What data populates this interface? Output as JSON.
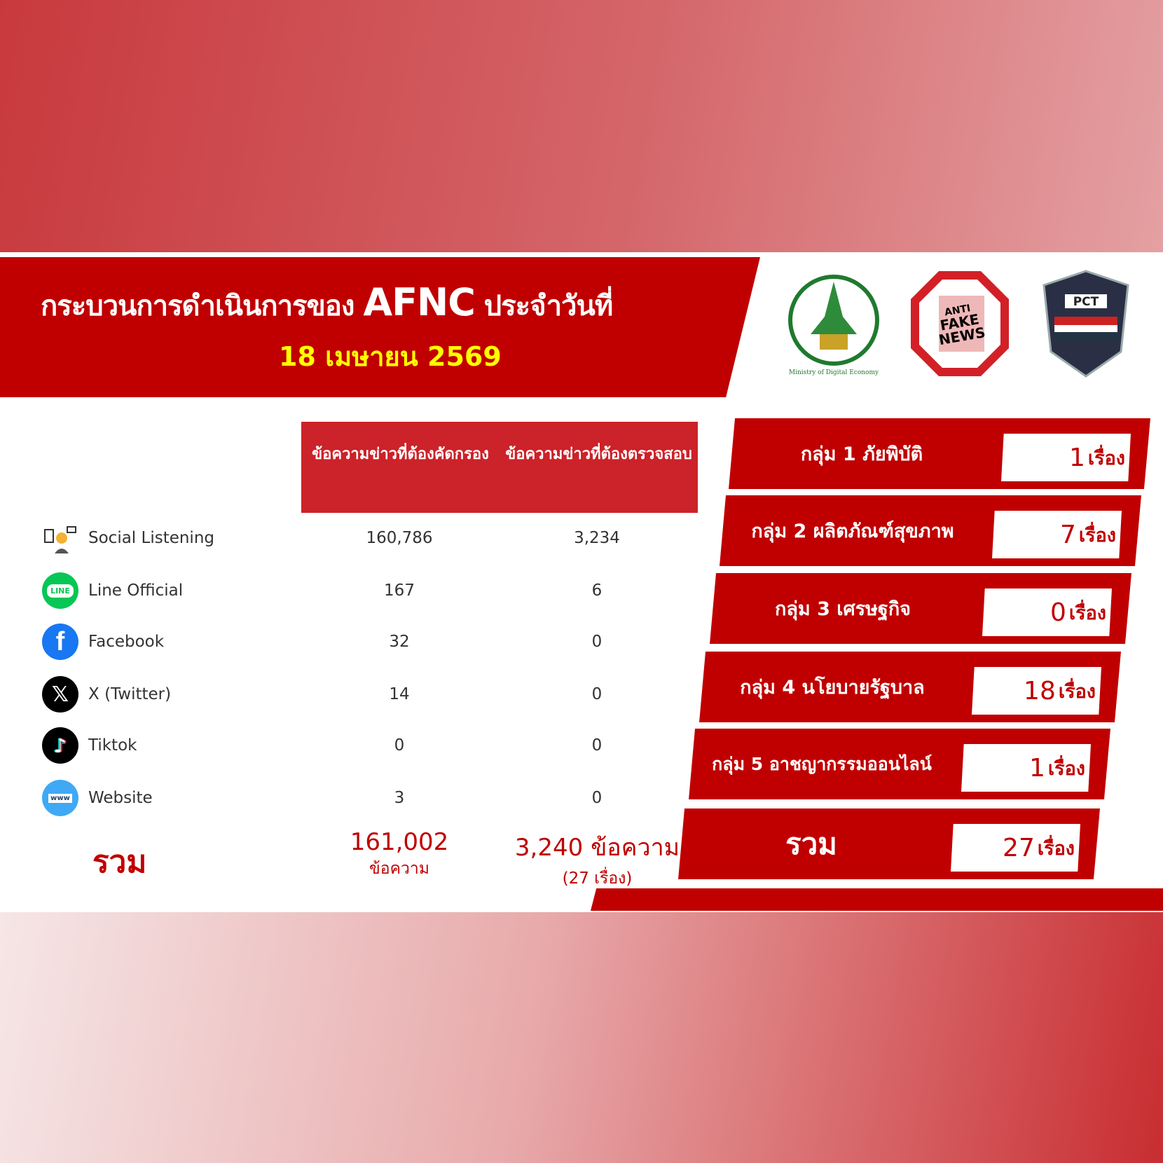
{
  "header": {
    "title_prefix": "กระบวนการดำเนินการของ",
    "title_brand": "AFNC",
    "title_suffix": "ประจำวันที่",
    "date": "18 เมษายน 2569"
  },
  "logos": [
    {
      "name": "ministry-of-digital-economy-and-society",
      "text": "Ministry of Digital Economy and Society"
    },
    {
      "name": "anti-fake-news-thailand",
      "text": "ANTI FAKE NEWS THAILAND"
    },
    {
      "name": "police-cyber-taskforce",
      "text": "PCT"
    }
  ],
  "table": {
    "headers": [
      "ข้อความข่าวที่ต้องคัดกรอง",
      "ข้อความข่าวที่ต้องตรวจสอบ"
    ],
    "rows": [
      {
        "name": "Social Listening",
        "icon": "social-listening-icon",
        "screened": "160,786",
        "verify": "3,234"
      },
      {
        "name": "Line Official",
        "icon": "line-icon",
        "screened": "167",
        "verify": "6"
      },
      {
        "name": "Facebook",
        "icon": "facebook-icon",
        "screened": "32",
        "verify": "0"
      },
      {
        "name": "X (Twitter)",
        "icon": "x-twitter-icon",
        "screened": "14",
        "verify": "0"
      },
      {
        "name": "Tiktok",
        "icon": "tiktok-icon",
        "screened": "0",
        "verify": "0"
      },
      {
        "name": "Website",
        "icon": "website-icon",
        "screened": "3",
        "verify": "0"
      }
    ],
    "total": {
      "label": "รวม",
      "screened": "161,002",
      "screened_unit": "ข้อความ",
      "verify": "3,240 ข้อความ",
      "verify_sub": "(27 เรื่อง)"
    }
  },
  "groups": [
    {
      "label": "กลุ่ม 1 ภัยพิบัติ",
      "count": "1",
      "unit": "เรื่อง"
    },
    {
      "label": "กลุ่ม 2 ผลิตภัณฑ์สุขภาพ",
      "count": "7",
      "unit": "เรื่อง"
    },
    {
      "label": "กลุ่ม 3 เศรษฐกิจ",
      "count": "0",
      "unit": "เรื่อง"
    },
    {
      "label": "กลุ่ม 4 นโยบายรัฐบาล",
      "count": "18",
      "unit": "เรื่อง"
    },
    {
      "label": "กลุ่ม 5 อาชญากรรมออนไลน์",
      "count": "1",
      "unit": "เรื่อง"
    },
    {
      "label": "รวม",
      "count": "27",
      "unit": "เรื่อง"
    }
  ],
  "colors": {
    "primary_red": "#c00000",
    "header_red": "#cc2229",
    "date_yellow": "#ffff00"
  }
}
